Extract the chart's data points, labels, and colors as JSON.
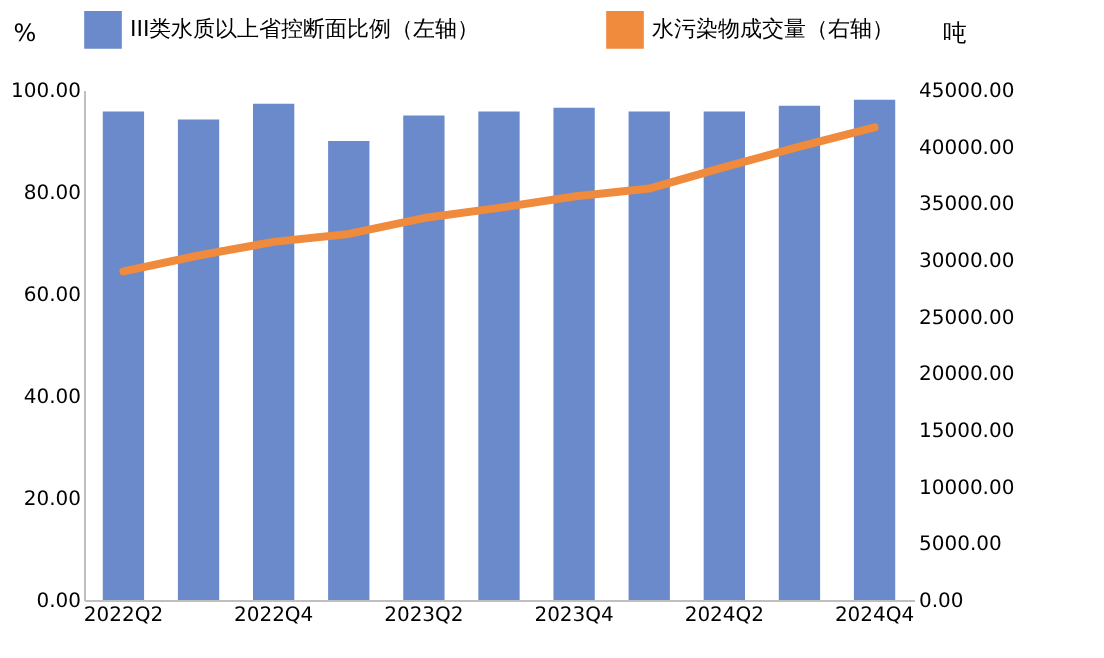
{
  "chart_data": {
    "type": "bar",
    "categories": [
      "2022Q2",
      null,
      "2022Q4",
      null,
      "2023Q2",
      null,
      "2023Q4",
      null,
      "2024Q2",
      null,
      "2024Q4"
    ],
    "series": [
      {
        "name": "III类水质以上省控断面比例（左轴）",
        "color": "#6a8acb",
        "values": [
          95.8,
          94.2,
          97.3,
          90.0,
          95.0,
          95.8,
          96.5,
          95.8,
          95.8,
          96.9,
          98.1
        ]
      },
      {
        "name": "水污染物成交量（右轴）",
        "type": "line",
        "axis": "y2",
        "color": "#f08a3c",
        "values": [
          29000,
          30400,
          31600,
          32300,
          33700,
          34600,
          35600,
          36300,
          38200,
          40000,
          41700
        ]
      }
    ],
    "ylabel": "%",
    "y2label": "吨",
    "ylim": [
      0,
      100
    ],
    "yticks": [
      {
        "value": 0,
        "label": "0.00"
      },
      {
        "value": 20,
        "label": "20.00"
      },
      {
        "value": 40,
        "label": "40.00"
      },
      {
        "value": 60,
        "label": "60.00"
      },
      {
        "value": 80,
        "label": "80.00"
      },
      {
        "value": 100,
        "label": "100.00"
      }
    ],
    "y2lim": [
      0,
      45000
    ],
    "y2ticks": [
      {
        "value": 0,
        "label": "0.00"
      },
      {
        "value": 5000,
        "label": "5000.00"
      },
      {
        "value": 10000,
        "label": "10000.00"
      },
      {
        "value": 15000,
        "label": "15000.00"
      },
      {
        "value": 20000,
        "label": "20000.00"
      },
      {
        "value": 25000,
        "label": "25000.00"
      },
      {
        "value": 30000,
        "label": "30000.00"
      },
      {
        "value": 35000,
        "label": "35000.00"
      },
      {
        "value": 40000,
        "label": "40000.00"
      },
      {
        "value": 45000,
        "label": "45000.00"
      }
    ],
    "legend": "top",
    "grid": false
  }
}
